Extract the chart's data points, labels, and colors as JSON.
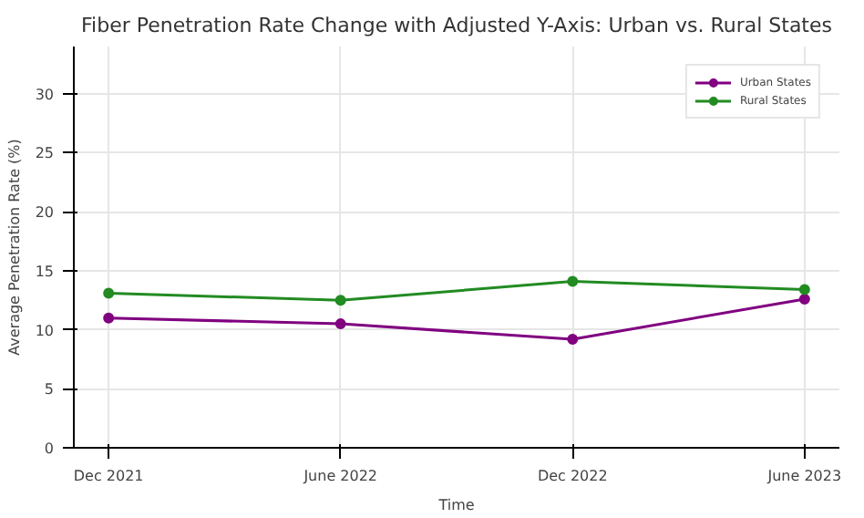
{
  "chart_data": {
    "type": "line",
    "title": "Fiber Penetration Rate Change with Adjusted Y-Axis: Urban vs. Rural States",
    "xlabel": "Time",
    "ylabel": "Average Penetration Rate (%)",
    "categories": [
      "Dec 2021",
      "June 2022",
      "Dec 2022",
      "June 2023"
    ],
    "series": [
      {
        "name": "Urban States",
        "color": "#800080",
        "values": [
          11.0,
          10.5,
          9.2,
          12.6
        ]
      },
      {
        "name": "Rural States",
        "color": "#228b22",
        "values": [
          13.1,
          12.5,
          14.1,
          13.4
        ]
      }
    ],
    "ylim": [
      0,
      34
    ],
    "yticks": [
      0,
      5,
      10,
      15,
      20,
      25,
      30
    ],
    "grid": true,
    "legend": "top right",
    "marker": "circle",
    "line_style": "solid"
  }
}
